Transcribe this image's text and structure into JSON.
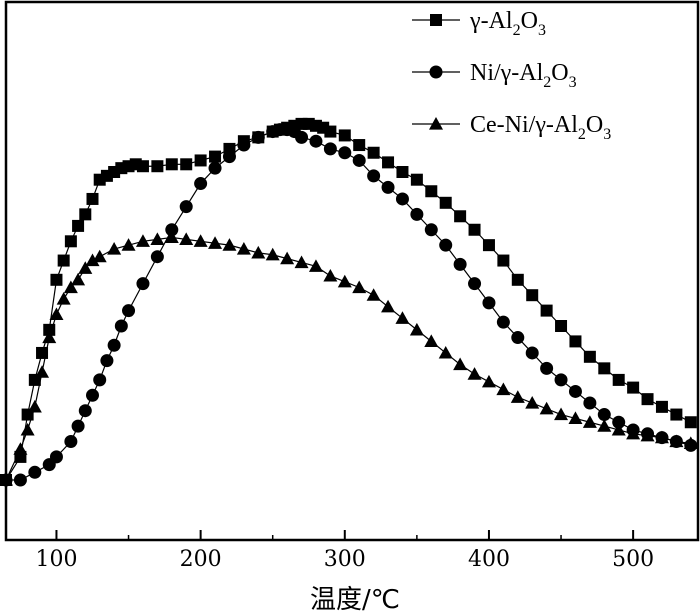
{
  "chart_data": {
    "type": "line",
    "title": "",
    "xlabel": "温度/℃",
    "ylabel": "",
    "xlim": [
      65,
      545
    ],
    "ylim": [
      0,
      1
    ],
    "xticks": [
      100,
      200,
      300,
      400,
      500
    ],
    "grid": false,
    "legend_position": "top-right",
    "series": [
      {
        "name": "γ-Al₂O₃",
        "legend": {
          "prefix": "γ-Al",
          "s1": "2",
          "mid": "O",
          "s2": "3"
        },
        "marker": "square",
        "x": [
          65,
          75,
          80,
          85,
          90,
          95,
          100,
          105,
          110,
          115,
          120,
          125,
          130,
          135,
          140,
          145,
          150,
          155,
          160,
          170,
          180,
          190,
          200,
          210,
          220,
          230,
          240,
          250,
          255,
          260,
          265,
          270,
          275,
          280,
          285,
          290,
          300,
          310,
          320,
          330,
          340,
          350,
          360,
          370,
          380,
          390,
          400,
          410,
          420,
          430,
          440,
          450,
          460,
          470,
          480,
          490,
          500,
          510,
          520,
          530,
          540
        ],
        "y": [
          0.0,
          0.06,
          0.17,
          0.26,
          0.33,
          0.39,
          0.52,
          0.57,
          0.62,
          0.66,
          0.69,
          0.73,
          0.78,
          0.79,
          0.8,
          0.81,
          0.815,
          0.82,
          0.815,
          0.815,
          0.82,
          0.82,
          0.83,
          0.84,
          0.86,
          0.88,
          0.89,
          0.905,
          0.91,
          0.915,
          0.92,
          0.925,
          0.925,
          0.92,
          0.915,
          0.905,
          0.895,
          0.87,
          0.85,
          0.825,
          0.8,
          0.78,
          0.75,
          0.72,
          0.685,
          0.65,
          0.61,
          0.57,
          0.52,
          0.48,
          0.44,
          0.4,
          0.36,
          0.32,
          0.29,
          0.26,
          0.24,
          0.21,
          0.19,
          0.17,
          0.15
        ]
      },
      {
        "name": "Ni/γ-Al₂O₃",
        "legend": {
          "prefix": "Ni/γ-Al",
          "s1": "2",
          "mid": "O",
          "s2": "3"
        },
        "marker": "circle",
        "x": [
          65,
          75,
          85,
          95,
          100,
          110,
          115,
          120,
          125,
          130,
          135,
          140,
          145,
          150,
          160,
          170,
          180,
          190,
          200,
          210,
          220,
          230,
          240,
          250,
          255,
          260,
          265,
          270,
          280,
          290,
          300,
          310,
          320,
          330,
          340,
          350,
          360,
          370,
          380,
          390,
          400,
          410,
          420,
          430,
          440,
          450,
          460,
          470,
          480,
          490,
          500,
          510,
          520,
          530,
          540
        ],
        "y": [
          0.0,
          0.0,
          0.02,
          0.04,
          0.06,
          0.1,
          0.14,
          0.18,
          0.22,
          0.26,
          0.31,
          0.35,
          0.4,
          0.44,
          0.51,
          0.58,
          0.65,
          0.71,
          0.77,
          0.81,
          0.84,
          0.87,
          0.89,
          0.905,
          0.91,
          0.91,
          0.905,
          0.89,
          0.88,
          0.86,
          0.85,
          0.83,
          0.79,
          0.76,
          0.73,
          0.69,
          0.65,
          0.61,
          0.56,
          0.51,
          0.46,
          0.41,
          0.37,
          0.33,
          0.29,
          0.26,
          0.23,
          0.2,
          0.17,
          0.15,
          0.13,
          0.12,
          0.11,
          0.1,
          0.09
        ]
      },
      {
        "name": "Ce-Ni/γ-Al₂O₃",
        "legend": {
          "prefix": "Ce-Ni/γ-Al",
          "s1": "2",
          "mid": "O",
          "s2": "3"
        },
        "marker": "triangle",
        "x": [
          65,
          75,
          80,
          85,
          90,
          95,
          100,
          105,
          110,
          115,
          120,
          125,
          130,
          140,
          150,
          160,
          170,
          180,
          190,
          200,
          210,
          220,
          230,
          240,
          250,
          260,
          270,
          280,
          290,
          300,
          310,
          320,
          330,
          340,
          350,
          360,
          370,
          380,
          390,
          400,
          410,
          420,
          430,
          440,
          450,
          460,
          470,
          480,
          490,
          500,
          510,
          520,
          530,
          540
        ],
        "y": [
          0.0,
          0.08,
          0.13,
          0.19,
          0.28,
          0.37,
          0.43,
          0.47,
          0.5,
          0.52,
          0.55,
          0.57,
          0.58,
          0.6,
          0.61,
          0.62,
          0.625,
          0.63,
          0.625,
          0.62,
          0.615,
          0.61,
          0.6,
          0.59,
          0.585,
          0.575,
          0.565,
          0.555,
          0.53,
          0.515,
          0.5,
          0.48,
          0.45,
          0.42,
          0.39,
          0.36,
          0.33,
          0.3,
          0.275,
          0.255,
          0.235,
          0.215,
          0.2,
          0.185,
          0.17,
          0.16,
          0.15,
          0.14,
          0.13,
          0.12,
          0.115,
          0.11,
          0.1,
          0.095
        ]
      }
    ]
  }
}
